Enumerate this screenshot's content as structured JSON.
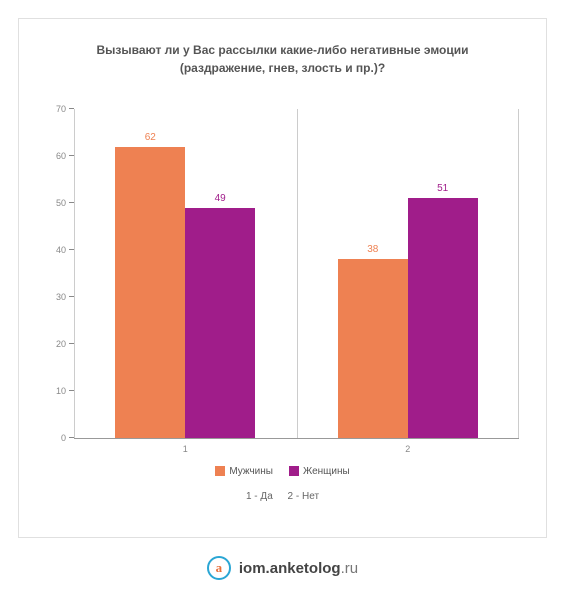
{
  "chart": {
    "type": "bar",
    "title_line1": "Вызывают ли у Вас рассылки какие-либо негативные эмоции",
    "title_line2": "(раздражение, гнев, злость и пр.)?",
    "title_color": "#555555",
    "title_fontsize": 12,
    "background_color": "#ffffff",
    "border_color": "#e0e0e0",
    "grid_vline_color": "#cccccc",
    "axis_color": "#999999",
    "tick_label_color": "#888888",
    "tick_label_fontsize": 9,
    "ylim": [
      0,
      70
    ],
    "yticks": [
      0,
      10,
      20,
      30,
      40,
      50,
      60,
      70
    ],
    "categories": [
      "1",
      "2"
    ],
    "series": [
      {
        "name": "Мужчины",
        "color": "#ee8152",
        "label_color": "#ee8152"
      },
      {
        "name": "Женщины",
        "color": "#a01d8a",
        "label_color": "#a01d8a"
      }
    ],
    "values": [
      [
        62,
        49
      ],
      [
        38,
        51
      ]
    ],
    "value_label_fontsize": 10,
    "bar_width_pct": 15.7,
    "group_positions_pct": [
      25,
      75
    ],
    "legend": {
      "fontsize": 10,
      "text_color": "#555555"
    },
    "xkey": {
      "items": [
        "1 - Да",
        "2 - Нет"
      ],
      "fontsize": 10,
      "color": "#666666"
    }
  },
  "footer": {
    "logo_letter": "a",
    "logo_border_color": "#2aa6d4",
    "logo_letter_color": "#e86f3a",
    "domain_strong": "iom.anketolog",
    "domain_tld": ".ru",
    "strong_color": "#444444",
    "light_color": "#777777",
    "fontsize": 15
  }
}
